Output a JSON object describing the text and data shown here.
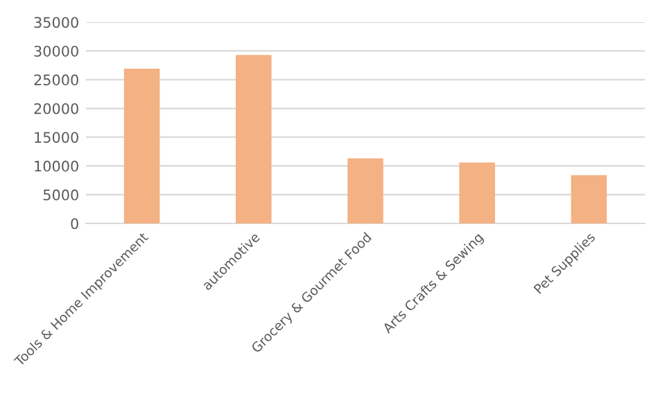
{
  "chart_data": {
    "type": "bar",
    "categories": [
      "Tools & Home Improvement",
      "automotive",
      "Grocery & Gourmet Food",
      "Arts Crafts & Sewing",
      "Pet Supplies"
    ],
    "values": [
      26900,
      29300,
      11300,
      10600,
      8400
    ],
    "color": "#f4b183",
    "ylim": [
      0,
      35000
    ],
    "yticks": [
      0,
      5000,
      10000,
      15000,
      20000,
      25000,
      30000,
      35000
    ],
    "grid": "y"
  }
}
